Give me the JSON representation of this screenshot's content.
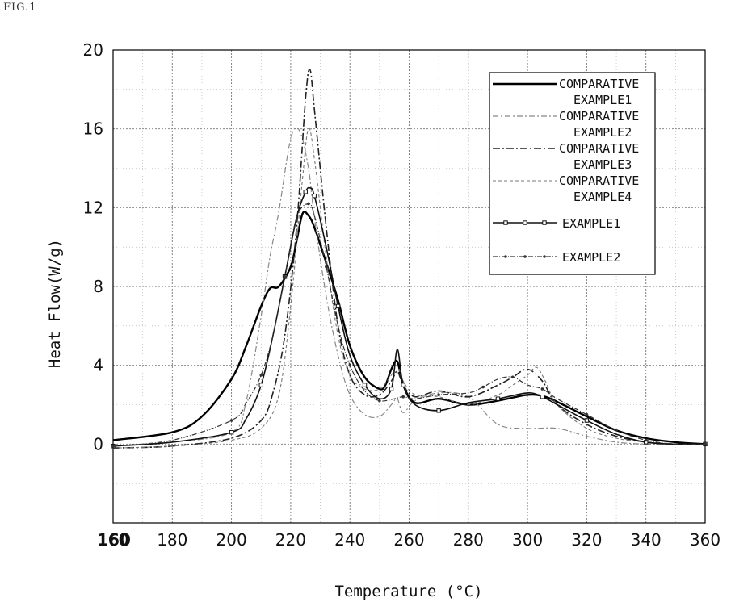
{
  "figure_label": "FIG.1",
  "chart_data": {
    "type": "line",
    "title": "",
    "xlabel": "Temperature (°C)",
    "ylabel": "Heat Flow(W/g)",
    "xlim": [
      160,
      360
    ],
    "ylim": [
      -4,
      20
    ],
    "xticks": [
      160,
      180,
      200,
      220,
      240,
      260,
      280,
      300,
      320,
      340,
      360
    ],
    "xtick_labels": [
      "160",
      "180",
      "200",
      "220",
      "240",
      "260",
      "280",
      "300",
      "320",
      "340",
      "360"
    ],
    "extra_xtick_label": {
      "x": 160,
      "label": "160"
    },
    "yticks": [
      0,
      4,
      8,
      12,
      16,
      20
    ],
    "ytick_labels": [
      "0",
      "4",
      "8",
      "12",
      "16",
      "20"
    ],
    "grid": true,
    "legend_position": "top-right",
    "series": [
      {
        "name": "COMPARATIVE EXAMPLE1",
        "legend_lines": [
          "COMPARATIVE",
          "EXAMPLE1"
        ],
        "style": "thick-solid",
        "x": [
          160,
          180,
          190,
          200,
          205,
          210,
          213,
          216,
          220,
          222,
          224,
          226,
          228,
          232,
          236,
          240,
          245,
          250,
          252,
          254,
          256,
          258,
          262,
          270,
          280,
          290,
          300,
          306,
          312,
          320,
          330,
          340,
          350,
          360
        ],
        "y": [
          0.2,
          0.6,
          1.4,
          3.3,
          5.0,
          7.0,
          7.9,
          8.0,
          9.0,
          10.3,
          11.7,
          11.6,
          11.0,
          9.2,
          7.3,
          5.0,
          3.4,
          2.8,
          3.0,
          3.8,
          4.2,
          3.0,
          2.1,
          2.3,
          2.0,
          2.2,
          2.5,
          2.4,
          2.0,
          1.4,
          0.7,
          0.3,
          0.1,
          0.0
        ]
      },
      {
        "name": "COMPARATIVE EXAMPLE2",
        "legend_lines": [
          "COMPARATIVE",
          "EXAMPLE2"
        ],
        "style": "light-dashdot",
        "x": [
          160,
          180,
          200,
          205,
          210,
          213,
          216,
          220,
          223,
          226,
          228,
          232,
          236,
          240,
          245,
          250,
          254,
          256,
          258,
          262,
          270,
          280,
          290,
          300,
          310,
          320,
          330,
          340,
          350,
          360
        ],
        "y": [
          -0.1,
          0.1,
          0.6,
          2.2,
          6.5,
          9.5,
          11.8,
          15.5,
          15.9,
          14.0,
          11.5,
          7.5,
          4.5,
          2.5,
          1.5,
          1.4,
          2.0,
          2.3,
          1.6,
          2.2,
          2.6,
          2.4,
          1.0,
          0.8,
          0.8,
          0.4,
          0.1,
          0.0,
          0.0,
          0.0
        ]
      },
      {
        "name": "COMPARATIVE EXAMPLE3",
        "legend_lines": [
          "COMPARATIVE",
          "EXAMPLE3"
        ],
        "style": "dashdot",
        "x": [
          160,
          180,
          200,
          210,
          214,
          218,
          222,
          225,
          226.5,
          228,
          232,
          236,
          240,
          245,
          250,
          254,
          256,
          258,
          262,
          270,
          280,
          290,
          295,
          300,
          305,
          310,
          320,
          330,
          340,
          350,
          360
        ],
        "y": [
          -0.2,
          -0.1,
          0.3,
          1.2,
          2.6,
          5.5,
          11.0,
          17.5,
          19.0,
          17.0,
          11.0,
          6.0,
          3.5,
          2.5,
          2.5,
          3.2,
          3.7,
          3.0,
          2.4,
          2.7,
          2.4,
          3.0,
          3.4,
          3.8,
          3.2,
          2.0,
          1.0,
          0.4,
          0.1,
          0.0,
          0.0
        ]
      },
      {
        "name": "COMPARATIVE EXAMPLE4",
        "legend_lines": [
          "COMPARATIVE",
          "EXAMPLE4"
        ],
        "style": "thin-dashed",
        "x": [
          160,
          180,
          200,
          210,
          216,
          220,
          224,
          226,
          228,
          232,
          236,
          240,
          245,
          250,
          254,
          256,
          258,
          262,
          270,
          280,
          290,
          295,
          300,
          303,
          306,
          310,
          320,
          330,
          340,
          350,
          360
        ],
        "y": [
          -0.2,
          -0.1,
          0.2,
          0.8,
          2.5,
          7.0,
          13.5,
          16.0,
          14.5,
          9.5,
          5.5,
          3.5,
          2.8,
          2.8,
          3.5,
          4.0,
          3.2,
          2.5,
          2.4,
          2.0,
          2.5,
          3.0,
          3.5,
          3.9,
          3.2,
          2.0,
          0.8,
          0.3,
          0.1,
          0.0,
          0.0
        ]
      },
      {
        "name": "EXAMPLE1",
        "legend_lines": [
          "EXAMPLE1"
        ],
        "style": "solid-square-markers",
        "x": [
          160,
          180,
          200,
          205,
          210,
          214,
          218,
          222,
          225,
          226.5,
          228,
          232,
          236,
          240,
          245,
          250,
          254,
          256,
          258,
          262,
          270,
          280,
          290,
          300,
          305,
          310,
          320,
          330,
          340,
          350,
          360
        ],
        "y": [
          -0.1,
          0.1,
          0.6,
          1.3,
          3.0,
          5.5,
          8.5,
          11.5,
          12.8,
          13.0,
          12.6,
          10.0,
          7.0,
          4.5,
          3.0,
          2.3,
          2.8,
          4.8,
          3.0,
          2.0,
          1.7,
          2.1,
          2.3,
          2.6,
          2.4,
          2.0,
          1.2,
          0.5,
          0.1,
          0.0,
          0.0
        ]
      },
      {
        "name": "EXAMPLE2",
        "legend_lines": [
          "EXAMPLE2"
        ],
        "style": "dashdot-dot-markers",
        "x": [
          160,
          180,
          200,
          205,
          210,
          214,
          218,
          222,
          226,
          228,
          232,
          236,
          240,
          245,
          250,
          255,
          258,
          262,
          270,
          280,
          285,
          290,
          295,
          300,
          305,
          310,
          320,
          330,
          340,
          350,
          360
        ],
        "y": [
          -0.1,
          0.2,
          1.2,
          2.1,
          3.5,
          5.5,
          8.5,
          11.5,
          12.2,
          11.6,
          9.0,
          6.0,
          4.0,
          2.7,
          2.2,
          2.3,
          2.4,
          2.3,
          2.5,
          2.6,
          2.9,
          3.3,
          3.4,
          3.0,
          2.8,
          2.3,
          1.5,
          0.7,
          0.2,
          0.0,
          0.0
        ]
      }
    ]
  }
}
